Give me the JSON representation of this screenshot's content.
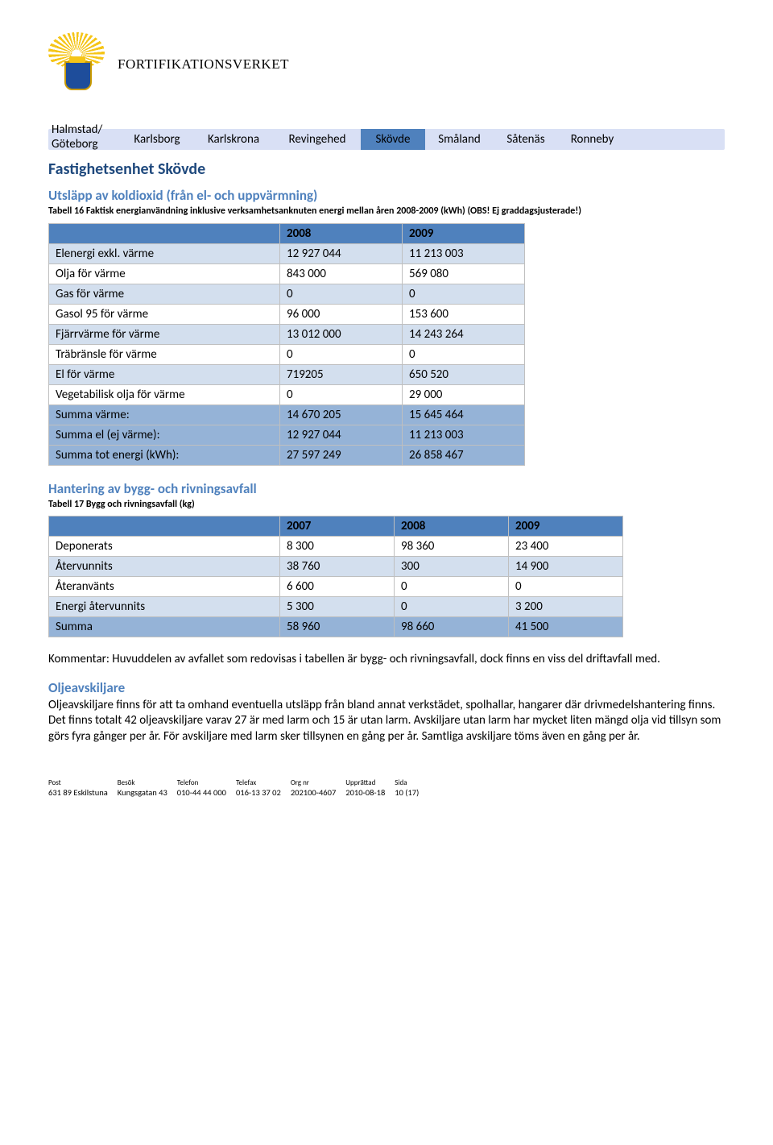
{
  "org_name": "FORTIFIKATIONSVERKET",
  "tabs": {
    "first_line1": "Halmstad/",
    "first_line2": "Göteborg",
    "items": [
      "",
      "Karlsborg",
      "Karlskrona",
      "Revingehed",
      "Skövde",
      "Småland",
      "Såtenäs",
      "Ronneby"
    ],
    "active_index": 4
  },
  "section_title": "Fastighetsenhet Skövde",
  "utslapp": {
    "heading": "Utsläpp av koldioxid (från el- och uppvärmning)",
    "caption": "Tabell 16 Faktisk energianvändning inklusive verksamhetsanknuten energi mellan åren 2008-2009 (kWh) (OBS! Ej graddagsjusterade!)",
    "years": [
      "2008",
      "2009"
    ],
    "rows": [
      {
        "label": "Elenergi exkl. värme",
        "v": [
          "12 927 044",
          "11 213 003"
        ],
        "cls": "row-a"
      },
      {
        "label": "Olja för värme",
        "v": [
          "843 000",
          "569 080"
        ],
        "cls": "row-b"
      },
      {
        "label": "Gas för värme",
        "v": [
          "0",
          "0"
        ],
        "cls": "row-a"
      },
      {
        "label": "Gasol 95 för värme",
        "v": [
          "96 000",
          "153 600"
        ],
        "cls": "row-b"
      },
      {
        "label": "Fjärrvärme för värme",
        "v": [
          "13 012 000",
          "14 243 264"
        ],
        "cls": "row-a"
      },
      {
        "label": "Träbränsle för värme",
        "v": [
          "0",
          "0"
        ],
        "cls": "row-b"
      },
      {
        "label": "El för värme",
        "v": [
          "719205",
          "650 520"
        ],
        "cls": "row-a"
      },
      {
        "label": "Vegetabilisk olja för värme",
        "v": [
          "0",
          "29 000"
        ],
        "cls": "row-b"
      },
      {
        "label": "Summa värme:",
        "v": [
          "14 670 205",
          "15 645 464"
        ],
        "cls": "row-sum"
      },
      {
        "label": "Summa el (ej värme):",
        "v": [
          "12 927 044",
          "11 213 003"
        ],
        "cls": "row-sum"
      },
      {
        "label": "Summa tot energi (kWh):",
        "v": [
          "27 597 249",
          "26 858 467"
        ],
        "cls": "row-sum"
      }
    ]
  },
  "avfall": {
    "heading": "Hantering av bygg- och rivningsavfall",
    "caption": "Tabell 17 Bygg och rivningsavfall (kg)",
    "years": [
      "2007",
      "2008",
      "2009"
    ],
    "rows": [
      {
        "label": "Deponerats",
        "v": [
          "8 300",
          "98 360",
          "23 400"
        ],
        "cls": "row-b"
      },
      {
        "label": "Återvunnits",
        "v": [
          "38 760",
          "300",
          "14 900"
        ],
        "cls": "row-a"
      },
      {
        "label": "Återanvänts",
        "v": [
          "6 600",
          "0",
          "0"
        ],
        "cls": "row-b"
      },
      {
        "label": "Energi återvunnits",
        "v": [
          "5 300",
          "0",
          "3 200"
        ],
        "cls": "row-a"
      },
      {
        "label": "Summa",
        "v": [
          "58 960",
          "98 660",
          "41 500"
        ],
        "cls": "row-sum"
      }
    ]
  },
  "kommentar": "Kommentar: Huvuddelen av avfallet som redovisas i tabellen är bygg- och rivningsavfall, dock finns en viss del driftavfall med.",
  "olje": {
    "heading": "Oljeavskiljare",
    "body": "Oljeavskiljare finns för att ta omhand eventuella utsläpp från bland annat verkstädet, spolhallar, hangarer där drivmedelshantering finns. Det finns totalt 42 oljeavskiljare varav 27 är med larm och 15 är utan larm. Avskiljare utan larm har mycket liten mängd olja vid tillsyn som görs fyra gånger per år. För avskiljare med larm sker tillsynen en gång per år. Samtliga avskiljare töms även en gång per år."
  },
  "footer": {
    "cols": [
      {
        "label": "Post",
        "value": "631 89 Eskilstuna"
      },
      {
        "label": "Besök",
        "value": "Kungsgatan 43"
      },
      {
        "label": "Telefon",
        "value": "010-44 44 000"
      },
      {
        "label": "Telefax",
        "value": "016-13 37 02"
      },
      {
        "label": "Org nr",
        "value": "202100-4607"
      },
      {
        "label": "Upprättad",
        "value": "2010-08-18"
      },
      {
        "label": "Sida",
        "value": "10 (17)"
      }
    ]
  }
}
